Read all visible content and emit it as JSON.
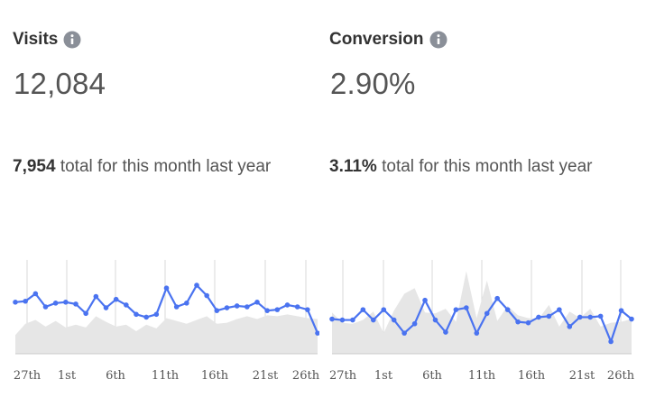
{
  "colors": {
    "line": "#4a73f0",
    "area": "#e6e6e6",
    "grid": "#d8d8d8",
    "icon": "#8a8f98"
  },
  "cards": [
    {
      "title": "Visits",
      "value": "12,084",
      "compare_value": "7,954",
      "compare_text": " total for this month last year"
    },
    {
      "title": "Conversion",
      "value": "2.90%",
      "compare_value": "3.11%",
      "compare_text": " total for this month last year"
    }
  ],
  "chart_data": [
    {
      "type": "line",
      "title": "",
      "x_tick_labels": [
        "27th",
        "1st",
        "6th",
        "11th",
        "16th",
        "21st",
        "26th"
      ],
      "series": [
        {
          "values": [
            0.55,
            0.56,
            0.64,
            0.5,
            0.54,
            0.55,
            0.53,
            0.43,
            0.61,
            0.49,
            0.58,
            0.52,
            0.42,
            0.39,
            0.42,
            0.7,
            0.5,
            0.54,
            0.73,
            0.62,
            0.46,
            0.49,
            0.51,
            0.5,
            0.55,
            0.46,
            0.47,
            0.52,
            0.5,
            0.47,
            0.22
          ]
        },
        {
          "values": [
            0.2,
            0.32,
            0.36,
            0.29,
            0.35,
            0.28,
            0.31,
            0.28,
            0.4,
            0.34,
            0.29,
            0.31,
            0.24,
            0.31,
            0.27,
            0.38,
            0.35,
            0.32,
            0.36,
            0.4,
            0.32,
            0.33,
            0.37,
            0.4,
            0.37,
            0.41,
            0.4,
            0.42,
            0.4,
            0.38,
            0.37
          ]
        }
      ]
    },
    {
      "type": "line",
      "title": "",
      "x_tick_labels": [
        "27th",
        "1st",
        "6th",
        "11th",
        "16th",
        "21st",
        "26th"
      ],
      "series": [
        {
          "values": [
            0.37,
            0.36,
            0.36,
            0.47,
            0.36,
            0.47,
            0.36,
            0.22,
            0.32,
            0.57,
            0.36,
            0.23,
            0.47,
            0.49,
            0.22,
            0.43,
            0.59,
            0.47,
            0.34,
            0.33,
            0.39,
            0.4,
            0.47,
            0.29,
            0.39,
            0.39,
            0.4,
            0.13,
            0.46,
            0.37
          ]
        },
        {
          "values": [
            0.44,
            0.33,
            0.32,
            0.36,
            0.45,
            0.22,
            0.46,
            0.64,
            0.7,
            0.44,
            0.43,
            0.48,
            0.34,
            0.88,
            0.38,
            0.78,
            0.35,
            0.51,
            0.41,
            0.38,
            0.37,
            0.52,
            0.29,
            0.45,
            0.38,
            0.48,
            0.29,
            0.33,
            0.34,
            0.37
          ]
        }
      ]
    }
  ]
}
